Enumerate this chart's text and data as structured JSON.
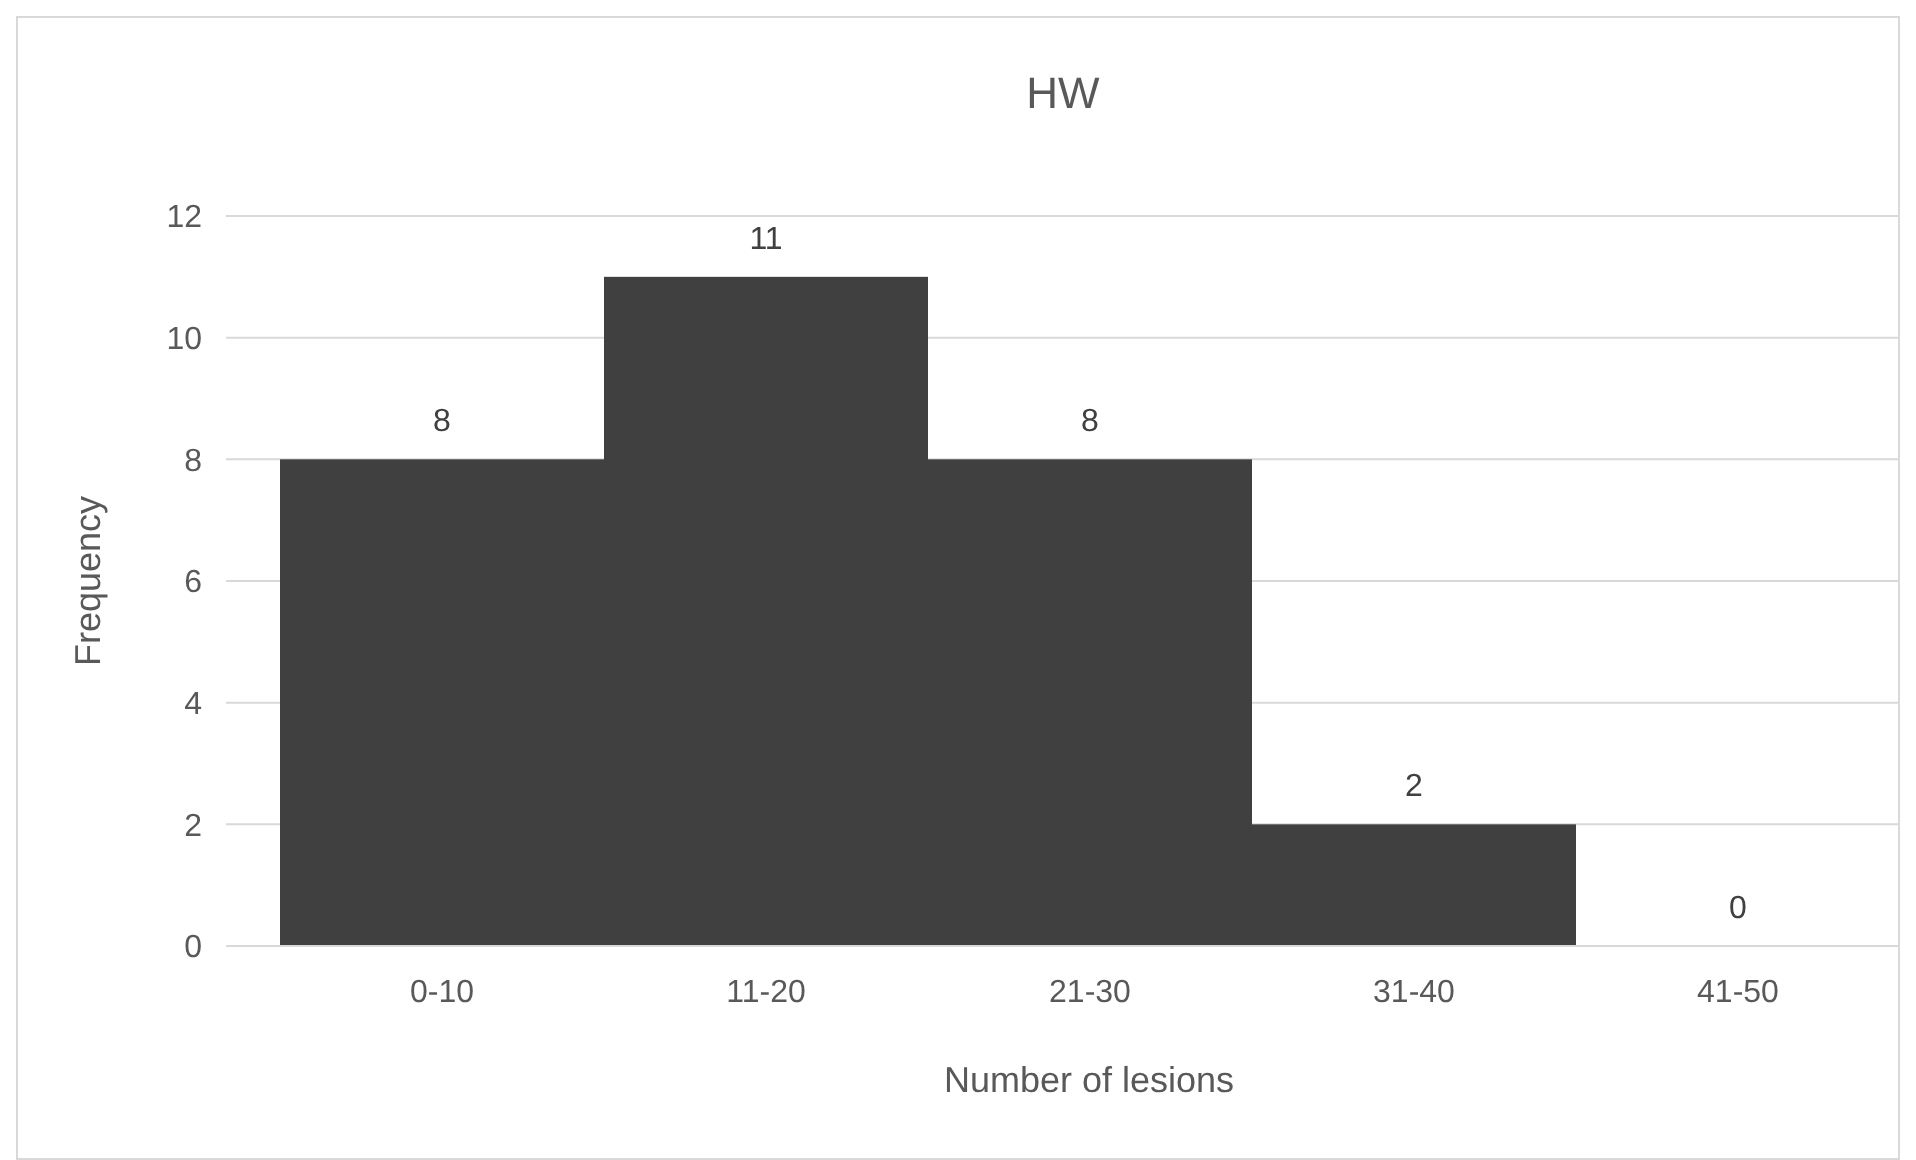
{
  "chart_data": {
    "type": "bar",
    "title": "HW",
    "xlabel": "Number of lesions",
    "ylabel": "Frequency",
    "categories": [
      "0-10",
      "11-20",
      "21-30",
      "31-40",
      "41-50"
    ],
    "values": [
      8,
      11,
      8,
      2,
      0
    ],
    "color": "#404040",
    "ylim": [
      0,
      12
    ],
    "yticks": [
      0,
      2,
      4,
      6,
      8,
      10,
      12
    ],
    "grid": "y",
    "data_labels": true
  }
}
